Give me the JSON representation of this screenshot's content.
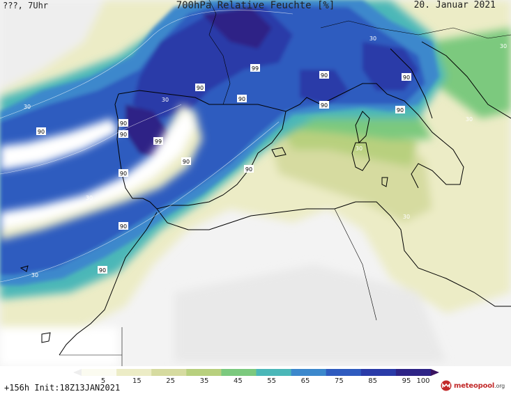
{
  "header": {
    "left": "???, 7Uhr",
    "title": "700hPa Relative Feuchte [%]",
    "date": "20. Januar 2021"
  },
  "footer": {
    "run_info": "+156h  Init:18Z13JAN2021",
    "logo_name": "meteopool",
    "logo_suffix": ".org"
  },
  "colorbar": {
    "ticks": [
      "5",
      "15",
      "25",
      "35",
      "45",
      "55",
      "65",
      "75",
      "85",
      "95",
      "100"
    ],
    "colors": [
      "#eeeeee",
      "#fbfbf0",
      "#ececc6",
      "#d6dba0",
      "#b8d07e",
      "#7cc97e",
      "#4bb7b8",
      "#3c88cc",
      "#2f5bbf",
      "#2a3ba8",
      "#2e2486",
      "#3a1360"
    ]
  },
  "contour_labels": [
    "90",
    "99",
    "30"
  ],
  "colors": {
    "wet": "#2f5bbf",
    "very_wet": "#2e2486",
    "dry": "#f4f4f0",
    "coast": "#000000"
  },
  "icons": [
    "meteopool-logo-icon"
  ]
}
